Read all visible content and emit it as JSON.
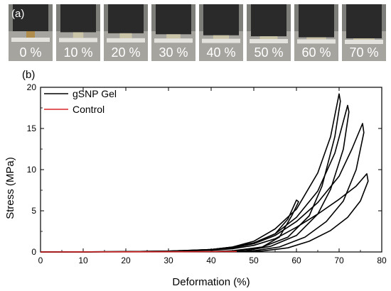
{
  "panel_a": {
    "label": "(a)",
    "photo_labels": [
      "0 %",
      "10 %",
      "20 %",
      "30 %",
      "40 %",
      "50 %",
      "60 %",
      "70 %"
    ]
  },
  "panel_b": {
    "label": "(b)"
  },
  "chart_data": {
    "type": "line",
    "xlabel": "Deformation (%)",
    "ylabel": "Stress (MPa)",
    "xlim": [
      0,
      80
    ],
    "ylim": [
      0,
      20
    ],
    "x_ticks": [
      "0",
      "10",
      "20",
      "30",
      "40",
      "50",
      "60",
      "70",
      "80"
    ],
    "y_ticks": [
      "0",
      "5",
      "10",
      "15",
      "20"
    ],
    "grid": false,
    "legend_position": "top-left",
    "series": [
      {
        "name": "gSNP Gel",
        "color": "#000000",
        "curves": [
          [
            [
              0,
              0
            ],
            [
              10,
              0.01
            ],
            [
              20,
              0.03
            ],
            [
              30,
              0.08
            ],
            [
              40,
              0.3
            ],
            [
              45,
              0.6
            ],
            [
              50,
              1.1
            ],
            [
              55,
              2.2
            ],
            [
              58,
              4.0
            ],
            [
              60,
              6.3
            ],
            [
              60.5,
              6.1
            ],
            [
              59,
              4.5
            ],
            [
              56,
              1.8
            ],
            [
              52,
              0.6
            ],
            [
              45,
              0.15
            ],
            [
              40,
              0.05
            ]
          ],
          [
            [
              0,
              0
            ],
            [
              10,
              0.01
            ],
            [
              20,
              0.04
            ],
            [
              30,
              0.1
            ],
            [
              40,
              0.3
            ],
            [
              45,
              0.6
            ],
            [
              50,
              1.3
            ],
            [
              55,
              2.8
            ],
            [
              60,
              5.2
            ],
            [
              65,
              9.6
            ],
            [
              68,
              14.0
            ],
            [
              70,
              19.2
            ],
            [
              70.3,
              18.3
            ],
            [
              69,
              14.0
            ],
            [
              66,
              8.0
            ],
            [
              63,
              4.4
            ],
            [
              58,
              1.8
            ],
            [
              52,
              0.6
            ],
            [
              46,
              0.15
            ],
            [
              42,
              0.05
            ]
          ],
          [
            [
              0,
              0
            ],
            [
              10,
              0.01
            ],
            [
              20,
              0.04
            ],
            [
              30,
              0.1
            ],
            [
              40,
              0.3
            ],
            [
              45,
              0.55
            ],
            [
              50,
              1.1
            ],
            [
              55,
              2.2
            ],
            [
              60,
              4.2
            ],
            [
              65,
              7.4
            ],
            [
              69,
              12.0
            ],
            [
              72,
              17.8
            ],
            [
              72.3,
              17.0
            ],
            [
              71,
              12.5
            ],
            [
              68,
              7.6
            ],
            [
              65,
              4.6
            ],
            [
              60,
              2.0
            ],
            [
              54,
              0.7
            ],
            [
              48,
              0.15
            ],
            [
              44,
              0.05
            ]
          ],
          [
            [
              0,
              0
            ],
            [
              10,
              0.01
            ],
            [
              20,
              0.04
            ],
            [
              30,
              0.1
            ],
            [
              40,
              0.25
            ],
            [
              45,
              0.5
            ],
            [
              50,
              1.0
            ],
            [
              55,
              2.0
            ],
            [
              60,
              3.7
            ],
            [
              65,
              6.0
            ],
            [
              70,
              9.2
            ],
            [
              73,
              12.5
            ],
            [
              75.5,
              15.6
            ],
            [
              75.8,
              14.5
            ],
            [
              74,
              10.0
            ],
            [
              71,
              6.2
            ],
            [
              67,
              3.7
            ],
            [
              62,
              1.8
            ],
            [
              56,
              0.6
            ],
            [
              50,
              0.15
            ],
            [
              46,
              0.05
            ]
          ],
          [
            [
              0,
              0
            ],
            [
              10,
              0.01
            ],
            [
              20,
              0.03
            ],
            [
              30,
              0.08
            ],
            [
              40,
              0.2
            ],
            [
              45,
              0.4
            ],
            [
              50,
              0.8
            ],
            [
              55,
              1.6
            ],
            [
              60,
              3.0
            ],
            [
              65,
              4.6
            ],
            [
              70,
              6.4
            ],
            [
              74,
              8.0
            ],
            [
              76.5,
              9.5
            ],
            [
              76.8,
              8.6
            ],
            [
              75,
              6.2
            ],
            [
              72,
              4.2
            ],
            [
              68,
              2.6
            ],
            [
              63,
              1.3
            ],
            [
              58,
              0.5
            ],
            [
              52,
              0.12
            ],
            [
              48,
              0.04
            ]
          ]
        ]
      },
      {
        "name": "Control",
        "color": "#d62728",
        "curves": [
          [
            [
              0,
              0
            ],
            [
              10,
              0.01
            ],
            [
              20,
              0.02
            ],
            [
              30,
              0.03
            ],
            [
              40,
              0.04
            ],
            [
              46,
              0.06
            ]
          ]
        ]
      }
    ]
  }
}
